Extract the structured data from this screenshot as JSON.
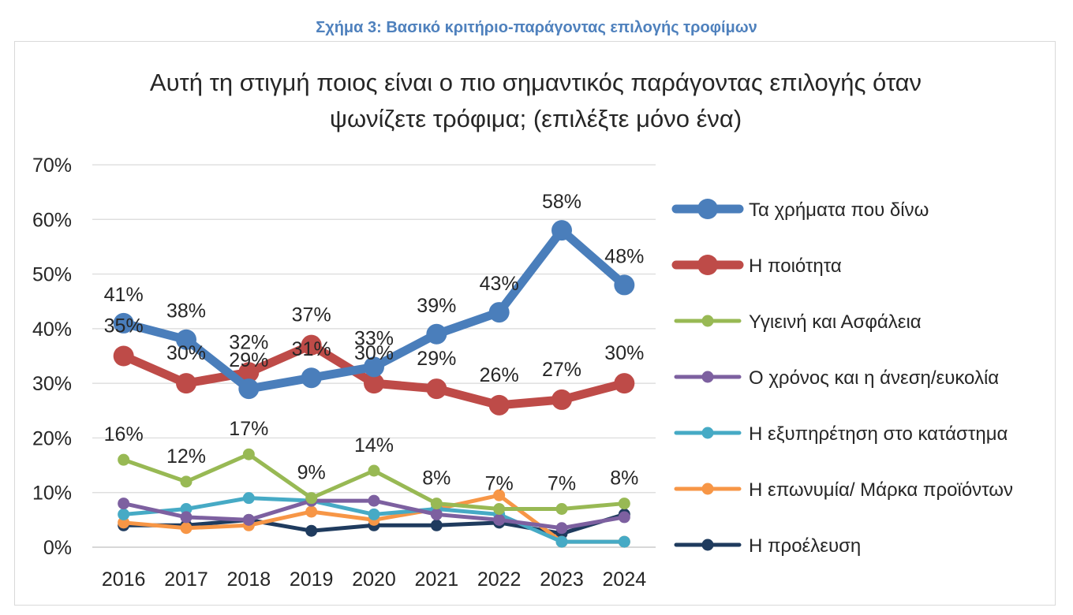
{
  "caption": "Σχήμα 3: Βασικό κριτήριο-παράγοντας επιλογής τροφίμων",
  "chart_data": {
    "type": "line",
    "title_lines": [
      "Αυτή τη στιγμή ποιος είναι ο πιο σημαντικός παράγοντας επιλογής όταν",
      "ψωνίζετε τρόφιμα; (επιλέξτε μόνο ένα)"
    ],
    "categories": [
      "2016",
      "2017",
      "2018",
      "2019",
      "2020",
      "2021",
      "2022",
      "2023",
      "2024"
    ],
    "y_ticks": [
      "0%",
      "10%",
      "20%",
      "30%",
      "40%",
      "50%",
      "60%",
      "70%"
    ],
    "ylim": [
      0,
      70
    ],
    "grid": true,
    "legend_position": "right",
    "series": [
      {
        "name": "Τα χρήματα που δίνω",
        "color": "#4a7ebb",
        "values": [
          41,
          38,
          29,
          31,
          33,
          39,
          43,
          58,
          48
        ],
        "labels": [
          "41%",
          "38%",
          "29%",
          "31%",
          "33%",
          "39%",
          "43%",
          "58%",
          "48%"
        ]
      },
      {
        "name": "Η ποιότητα",
        "color": "#be4b48",
        "values": [
          35,
          30,
          32,
          37,
          30,
          29,
          26,
          27,
          30
        ],
        "labels": [
          "35%",
          "30%",
          "32%",
          "37%",
          "30%",
          "29%",
          "26%",
          "27%",
          "30%"
        ]
      },
      {
        "name": "Υγιεινή και Ασφάλεια",
        "color": "#98b954",
        "values": [
          16,
          12,
          17,
          9,
          14,
          8,
          7,
          7,
          8
        ],
        "labels": [
          "16%",
          "12%",
          "17%",
          "9%",
          "14%",
          "8%",
          "7%",
          "7%",
          "8%"
        ]
      },
      {
        "name": "Ο χρόνος και η άνεση/ευκολία",
        "color": "#7d60a0",
        "values": [
          8,
          5.5,
          5,
          8.5,
          8.5,
          6,
          5,
          3.5,
          5.5
        ]
      },
      {
        "name": "Η εξυπηρέτηση στο κατάστημα",
        "color": "#46aac5",
        "values": [
          6,
          7,
          9,
          8.5,
          6,
          7,
          6,
          1,
          1
        ]
      },
      {
        "name": "Η επωνυμία/ Μάρκα προϊόντων",
        "color": "#f79646",
        "values": [
          4.5,
          3.5,
          4,
          6.5,
          5,
          7,
          9.5,
          1,
          1
        ]
      },
      {
        "name": "Η προέλευση",
        "color": "#1f3b5e",
        "values": [
          4,
          4,
          5,
          3,
          4,
          4,
          4.5,
          2.5,
          6
        ]
      }
    ]
  }
}
